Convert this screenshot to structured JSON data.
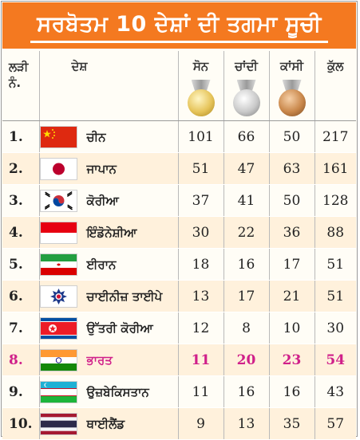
{
  "title": "ਸਰਬੋਤਮ 10 ਦੇਸ਼ਾਂ ਦੀ ਤਗਮਾ ਸੂਚੀ",
  "headers": {
    "rank": "ਲੜੀ\nਨੰ.",
    "rank_line1": "ਲੜੀ",
    "rank_line2": "ਨੰ.",
    "country": "ਦੇਸ਼",
    "gold": "ਸੋਨ",
    "silver": "ਚਾਂਦੀ",
    "bronze": "ਕਾਂਸੀ",
    "total": "ਕੁੱਲ"
  },
  "rows": [
    {
      "rank": "1.",
      "country": "ਚੀਨ",
      "flag": "china-flag-icon",
      "gold": "101",
      "silver": "66",
      "bronze": "50",
      "total": "217"
    },
    {
      "rank": "2.",
      "country": "ਜਾਪਾਨ",
      "flag": "japan-flag-icon",
      "gold": "51",
      "silver": "47",
      "bronze": "63",
      "total": "161"
    },
    {
      "rank": "3.",
      "country": "ਕੋਰੀਆ",
      "flag": "korea-flag-icon",
      "gold": "37",
      "silver": "41",
      "bronze": "50",
      "total": "128"
    },
    {
      "rank": "4.",
      "country": "ਇੰਡੋਨੇਸ਼ੀਆ",
      "flag": "indonesia-flag-icon",
      "gold": "30",
      "silver": "22",
      "bronze": "36",
      "total": "88"
    },
    {
      "rank": "5.",
      "country": "ਈਰਾਨ",
      "flag": "iran-flag-icon",
      "gold": "18",
      "silver": "16",
      "bronze": "17",
      "total": "51"
    },
    {
      "rank": "6.",
      "country": "ਚਾਈਨੀਜ਼ ਤਾਈਪੇ",
      "flag": "chinese-taipei-flag-icon",
      "gold": "13",
      "silver": "17",
      "bronze": "21",
      "total": "51"
    },
    {
      "rank": "7.",
      "country": "ਉੱਤਰੀ ਕੋਰੀਆ",
      "flag": "north-korea-flag-icon",
      "gold": "12",
      "silver": "8",
      "bronze": "10",
      "total": "30"
    },
    {
      "rank": "8.",
      "country": "ਭਾਰਤ",
      "flag": "india-flag-icon",
      "gold": "11",
      "silver": "20",
      "bronze": "23",
      "total": "54"
    },
    {
      "rank": "9.",
      "country": "ਉਜ਼ਬੇਕਿਸਤਾਨ",
      "flag": "uzbekistan-flag-icon",
      "gold": "11",
      "silver": "16",
      "bronze": "16",
      "total": "43"
    },
    {
      "rank": "10.",
      "country": "ਥਾਈਲੈਂਡ",
      "flag": "thailand-flag-icon",
      "gold": "9",
      "silver": "13",
      "bronze": "35",
      "total": "57"
    }
  ],
  "colors": {
    "title_bg": "#f47920",
    "highlight_text": "#d0208a",
    "row_even": "#fff1dc",
    "row_odd": "#fffdf6"
  }
}
